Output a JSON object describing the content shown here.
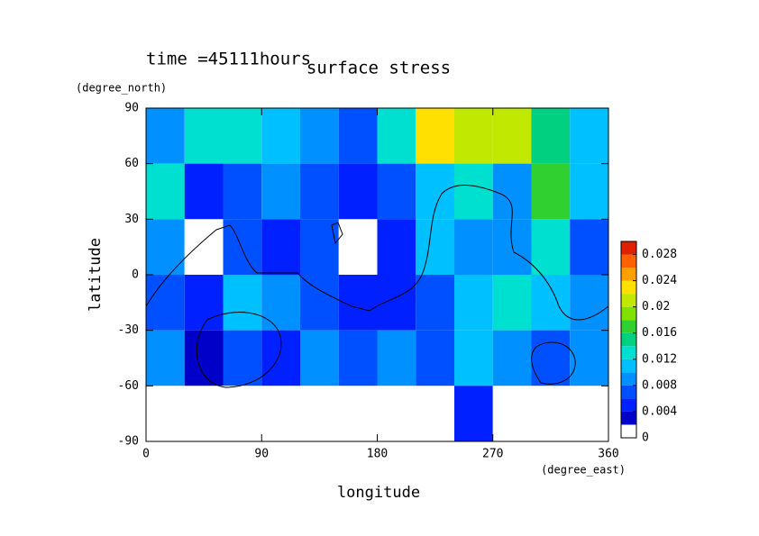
{
  "chart_data": {
    "type": "contour",
    "title": "surface stress",
    "subtitle": "time =45111hours",
    "xlabel": "longitude",
    "xunit": "(degree_east)",
    "ylabel": "latitude",
    "yunit": "(degree_north)",
    "xlim": [
      0,
      360
    ],
    "xticks": [
      0,
      90,
      180,
      270,
      360
    ],
    "ylim": [
      -90,
      90
    ],
    "yticks": [
      -90,
      -60,
      -30,
      0,
      30,
      60,
      90
    ],
    "x": [
      15,
      45,
      75,
      105,
      135,
      165,
      195,
      225,
      255,
      285,
      315,
      345
    ],
    "y": [
      75,
      45,
      15,
      -15,
      -45,
      -75
    ],
    "z": [
      [
        0.008,
        0.012,
        0.012,
        0.01,
        0.008,
        0.006,
        0.012,
        0.022,
        0.02,
        0.02,
        0.014,
        0.01
      ],
      [
        0.012,
        0.004,
        0.006,
        0.008,
        0.006,
        0.004,
        0.006,
        0.01,
        0.012,
        0.008,
        0.016,
        0.01
      ],
      [
        0.008,
        0,
        0.006,
        0.004,
        0.006,
        0,
        0.004,
        0.01,
        0.008,
        0.008,
        0.012,
        0.006
      ],
      [
        0.006,
        0.004,
        0.01,
        0.008,
        0.006,
        0.004,
        0.004,
        0.006,
        0.01,
        0.012,
        0.01,
        0.008
      ],
      [
        0.008,
        0.002,
        0.006,
        0.004,
        0.008,
        0.006,
        0.008,
        0.006,
        0.01,
        0.008,
        0.006,
        0.008
      ],
      [
        0,
        0,
        0,
        0,
        0,
        0,
        0,
        0,
        0.004,
        0,
        0,
        0
      ]
    ],
    "levels": [
      0,
      0.002,
      0.004,
      0.006,
      0.008,
      0.01,
      0.012,
      0.014,
      0.016,
      0.018,
      0.02,
      0.022,
      0.024,
      0.026,
      0.028,
      0.03
    ],
    "colors": [
      "#ffffff",
      "#0000c8",
      "#0020ff",
      "#0050ff",
      "#0090ff",
      "#00c0ff",
      "#00e0d0",
      "#00d080",
      "#30d030",
      "#80e000",
      "#c0e800",
      "#ffe000",
      "#ffa000",
      "#ff6000",
      "#e02000"
    ],
    "cticks": [
      0,
      0.004,
      0.008,
      0.012,
      0.016,
      0.02,
      0.024,
      0.028
    ]
  }
}
